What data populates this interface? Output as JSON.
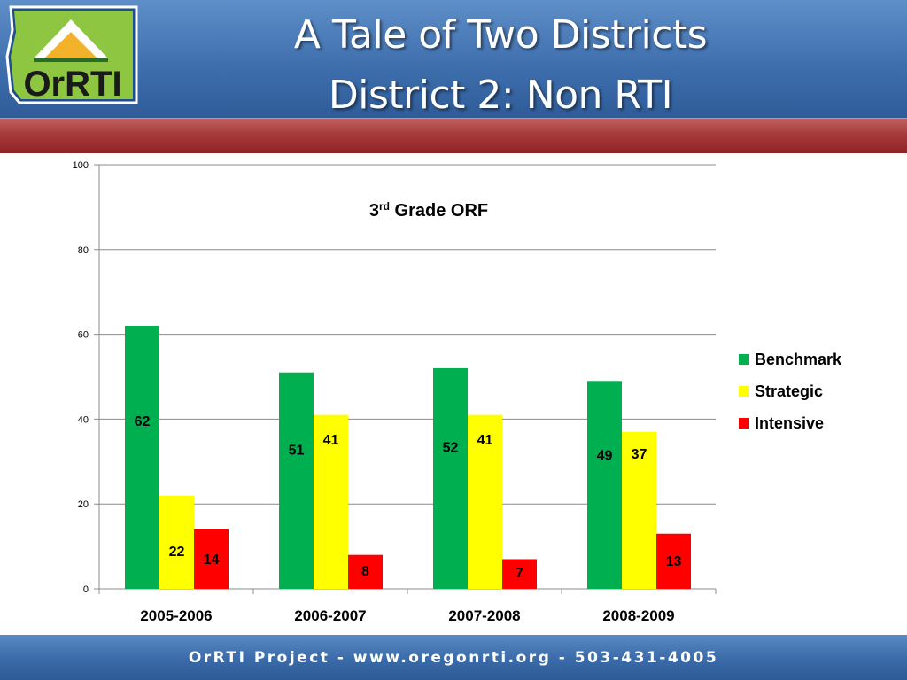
{
  "slide": {
    "title_line1": "A Tale of Two Districts",
    "title_line2": "District 2: Non RTI",
    "logo_text": "OrRTI",
    "footer": "OrRTI Project - www.oregonrti.org - 503-431-4005"
  },
  "colors": {
    "benchmark": "#00b050",
    "strategic": "#ffff00",
    "intensive": "#ff0000"
  },
  "chart_data": {
    "type": "bar",
    "title": "3rd Grade ORF",
    "title_main": "3",
    "title_sup": "rd",
    "title_rest": " Grade ORF",
    "categories": [
      "2005-2006",
      "2006-2007",
      "2007-2008",
      "2008-2009"
    ],
    "series": [
      {
        "name": "Benchmark",
        "values": [
          62,
          51,
          52,
          49
        ]
      },
      {
        "name": "Strategic",
        "values": [
          22,
          41,
          41,
          37
        ]
      },
      {
        "name": "Intensive",
        "values": [
          14,
          8,
          7,
          13
        ]
      }
    ],
    "yticks": [
      "0",
      "20",
      "40",
      "60",
      "80",
      "100"
    ],
    "ylim": [
      0,
      100
    ],
    "grid": true,
    "legend": "right",
    "xlabel": "",
    "ylabel": ""
  }
}
